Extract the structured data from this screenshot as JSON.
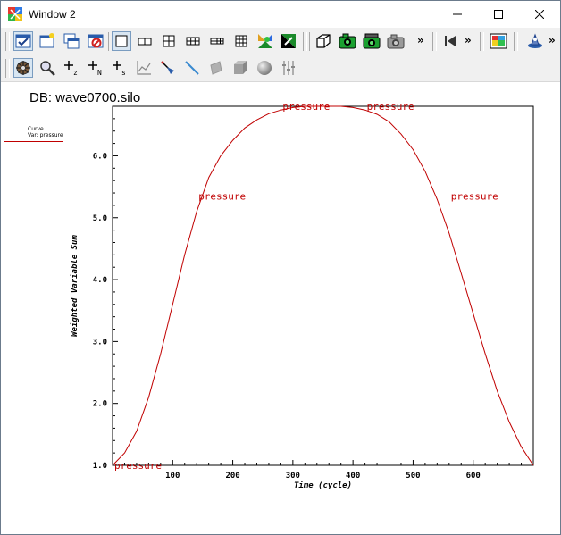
{
  "window": {
    "title": "Window 2",
    "minimize": "─",
    "maximize": "☐",
    "close": "✕"
  },
  "toolbar": {
    "row1_icons": [
      "active-window-icon",
      "new-window-icon",
      "clone-window-icon",
      "delete-window-icon",
      "layout-1x1-icon",
      "layout-1x2-icon",
      "layout-2x2-icon",
      "layout-2x3-icon",
      "layout-2x4-icon",
      "layout-3x3-icon",
      "lock-view-icon",
      "lock-time-icon",
      "navigate-3d-icon",
      "save-image-icon",
      "save-movie-icon",
      "camera-icon",
      "step-back-icon",
      "color-table-icon",
      "spin-icon"
    ],
    "row2_icons": [
      "navigate-icon",
      "zoom-icon",
      "zone-pick-icon",
      "node-pick-icon",
      "spreadsheet-pick-icon",
      "lineout-icon",
      "pick-icon",
      "line-tool-icon",
      "plane-tool-icon",
      "box-tool-icon",
      "sphere-tool-icon",
      "axis-restrict-icon"
    ],
    "more": "»"
  },
  "plot": {
    "db_label": "DB: wave0700.silo",
    "legend_title": "Curve",
    "legend_var": "Var: pressure",
    "line_color": "#c00000"
  },
  "chart_data": {
    "type": "line",
    "xlabel": "Time (cycle)",
    "ylabel": "Weighted Variable Sum",
    "xlim": [
      0,
      700
    ],
    "ylim": [
      1.0,
      6.8
    ],
    "x_ticks": [
      100,
      200,
      300,
      400,
      500,
      600
    ],
    "x_tick_labels": [
      "100",
      "200",
      "300",
      "400",
      "500",
      "600"
    ],
    "y_ticks": [
      1.0,
      2.0,
      3.0,
      4.0,
      5.0,
      6.0
    ],
    "y_tick_labels": [
      "1.0",
      "2.0",
      "3.0",
      "4.0",
      "5.0",
      "6.0"
    ],
    "series": [
      {
        "name": "pressure",
        "x": [
          0,
          20,
          40,
          60,
          80,
          100,
          120,
          140,
          160,
          180,
          200,
          220,
          240,
          260,
          280,
          300,
          320,
          340,
          360,
          380,
          400,
          420,
          440,
          460,
          480,
          500,
          520,
          540,
          560,
          580,
          600,
          620,
          640,
          660,
          680,
          700
        ],
        "y": [
          1.0,
          1.2,
          1.55,
          2.1,
          2.8,
          3.6,
          4.4,
          5.1,
          5.65,
          6.0,
          6.25,
          6.45,
          6.58,
          6.68,
          6.74,
          6.78,
          6.8,
          6.8,
          6.8,
          6.8,
          6.78,
          6.74,
          6.67,
          6.55,
          6.35,
          6.1,
          5.75,
          5.3,
          4.75,
          4.1,
          3.45,
          2.8,
          2.2,
          1.7,
          1.3,
          1.0
        ]
      }
    ],
    "annotations": [
      {
        "text": "pressure",
        "x": 0,
        "y": 1.0
      },
      {
        "text": "pressure",
        "x": 140,
        "y": 5.35
      },
      {
        "text": "pressure",
        "x": 280,
        "y": 6.8
      },
      {
        "text": "pressure",
        "x": 420,
        "y": 6.8
      },
      {
        "text": "pressure",
        "x": 560,
        "y": 5.35
      }
    ],
    "grid": false
  }
}
